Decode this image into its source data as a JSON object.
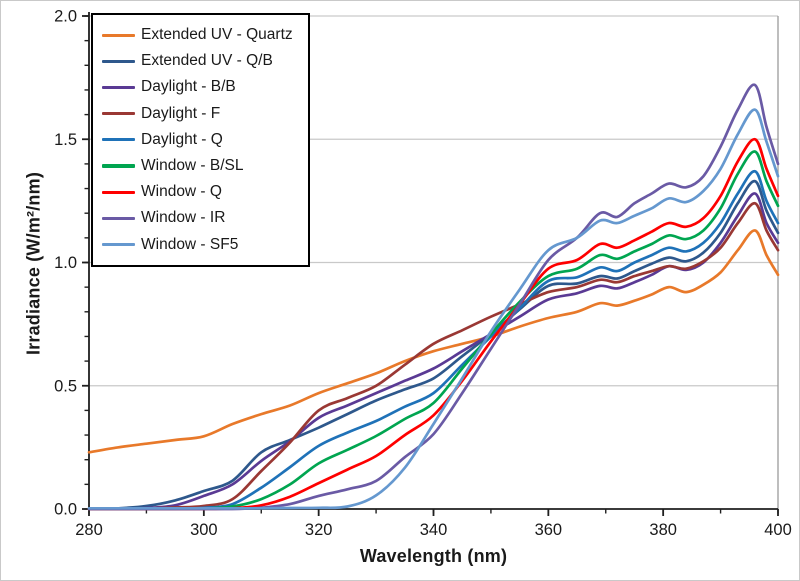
{
  "figure": {
    "background": "#ffffff",
    "border_color": "#c9c9c9"
  },
  "chart_data": {
    "type": "line",
    "title": "",
    "xlabel": "Wavelength (nm)",
    "ylabel": "Irradiance (W/m²/nm)",
    "xlim": [
      280,
      400
    ],
    "ylim": [
      0.0,
      2.0
    ],
    "x_major_ticks": [
      "280",
      "300",
      "320",
      "340",
      "360",
      "380",
      "400"
    ],
    "x_minor_step": 10,
    "y_major_ticks": [
      "0.0",
      "0.5",
      "1.0",
      "1.5",
      "2.0"
    ],
    "y_minor_step": 0.1,
    "grid": "horizontal major gridlines only",
    "gridline_color": "#c9c9c9",
    "axis_color": "#1f1f1f",
    "legend_position": "top-left, boxed, black border",
    "x": [
      280,
      285,
      290,
      295,
      300,
      305,
      310,
      315,
      320,
      325,
      330,
      335,
      340,
      345,
      350,
      355,
      360,
      365,
      369,
      372,
      375,
      378,
      381,
      384,
      387,
      390,
      393,
      396,
      398,
      400
    ],
    "series": [
      {
        "name": "Extended UV - Quartz",
        "color": "#e8792a",
        "values": [
          0.23,
          0.25,
          0.265,
          0.28,
          0.295,
          0.345,
          0.385,
          0.42,
          0.47,
          0.51,
          0.55,
          0.6,
          0.64,
          0.67,
          0.7,
          0.74,
          0.775,
          0.8,
          0.835,
          0.825,
          0.845,
          0.87,
          0.9,
          0.88,
          0.91,
          0.96,
          1.05,
          1.13,
          1.03,
          0.95
        ]
      },
      {
        "name": "Extended UV - Q/B",
        "color": "#2e588c",
        "values": [
          0.001,
          0.003,
          0.012,
          0.035,
          0.073,
          0.115,
          0.23,
          0.28,
          0.33,
          0.385,
          0.44,
          0.485,
          0.53,
          0.62,
          0.71,
          0.81,
          0.905,
          0.915,
          0.945,
          0.935,
          0.965,
          0.995,
          1.02,
          1.005,
          1.04,
          1.12,
          1.24,
          1.33,
          1.21,
          1.12
        ]
      },
      {
        "name": "Daylight - B/B",
        "color": "#5a3a94",
        "values": [
          0,
          0.001,
          0.004,
          0.015,
          0.053,
          0.1,
          0.195,
          0.275,
          0.37,
          0.42,
          0.47,
          0.52,
          0.57,
          0.64,
          0.71,
          0.78,
          0.85,
          0.875,
          0.905,
          0.895,
          0.92,
          0.95,
          0.985,
          0.97,
          1.0,
          1.08,
          1.19,
          1.28,
          1.16,
          1.08
        ]
      },
      {
        "name": "Daylight - F",
        "color": "#9a3834",
        "values": [
          0,
          0,
          0.002,
          0.006,
          0.012,
          0.04,
          0.154,
          0.27,
          0.4,
          0.45,
          0.5,
          0.585,
          0.67,
          0.725,
          0.78,
          0.83,
          0.88,
          0.9,
          0.93,
          0.92,
          0.945,
          0.965,
          0.985,
          0.975,
          1.005,
          1.06,
          1.16,
          1.24,
          1.13,
          1.05
        ]
      },
      {
        "name": "Daylight - Q",
        "color": "#1f72b8",
        "values": [
          0,
          0,
          0,
          0.001,
          0.005,
          0.02,
          0.0865,
          0.17,
          0.256,
          0.31,
          0.357,
          0.415,
          0.47,
          0.585,
          0.7,
          0.815,
          0.925,
          0.94,
          0.98,
          0.965,
          1.0,
          1.03,
          1.06,
          1.045,
          1.08,
          1.16,
          1.28,
          1.37,
          1.25,
          1.16
        ]
      },
      {
        "name": "Window - B/SL",
        "color": "#00a550",
        "values": [
          0,
          0,
          0,
          0,
          0.002,
          0.01,
          0.04,
          0.1,
          0.185,
          0.24,
          0.296,
          0.365,
          0.43,
          0.57,
          0.71,
          0.84,
          0.945,
          0.975,
          1.03,
          1.015,
          1.045,
          1.075,
          1.11,
          1.095,
          1.13,
          1.22,
          1.36,
          1.45,
          1.33,
          1.23
        ]
      },
      {
        "name": "Window - Q",
        "color": "#fe0000",
        "values": [
          0,
          0,
          0,
          0,
          0,
          0.003,
          0.015,
          0.05,
          0.105,
          0.16,
          0.215,
          0.3,
          0.38,
          0.52,
          0.68,
          0.83,
          0.975,
          1.01,
          1.075,
          1.06,
          1.09,
          1.125,
          1.16,
          1.145,
          1.18,
          1.27,
          1.41,
          1.5,
          1.38,
          1.27
        ]
      },
      {
        "name": "Window - IR",
        "color": "#6a5aa5",
        "values": [
          0,
          0,
          0,
          0,
          0,
          0,
          0.005,
          0.02,
          0.053,
          0.08,
          0.114,
          0.21,
          0.304,
          0.47,
          0.65,
          0.83,
          1.01,
          1.1,
          1.2,
          1.185,
          1.24,
          1.28,
          1.32,
          1.305,
          1.35,
          1.47,
          1.62,
          1.72,
          1.55,
          1.4
        ]
      },
      {
        "name": "Window - SF5",
        "color": "#6598cf",
        "values": [
          0.003,
          0.003,
          0.003,
          0.003,
          0.003,
          0.003,
          0.003,
          0.004,
          0.005,
          0.01,
          0.055,
          0.167,
          0.345,
          0.53,
          0.72,
          0.89,
          1.05,
          1.1,
          1.17,
          1.16,
          1.19,
          1.22,
          1.26,
          1.245,
          1.29,
          1.38,
          1.52,
          1.62,
          1.49,
          1.35
        ]
      }
    ]
  }
}
